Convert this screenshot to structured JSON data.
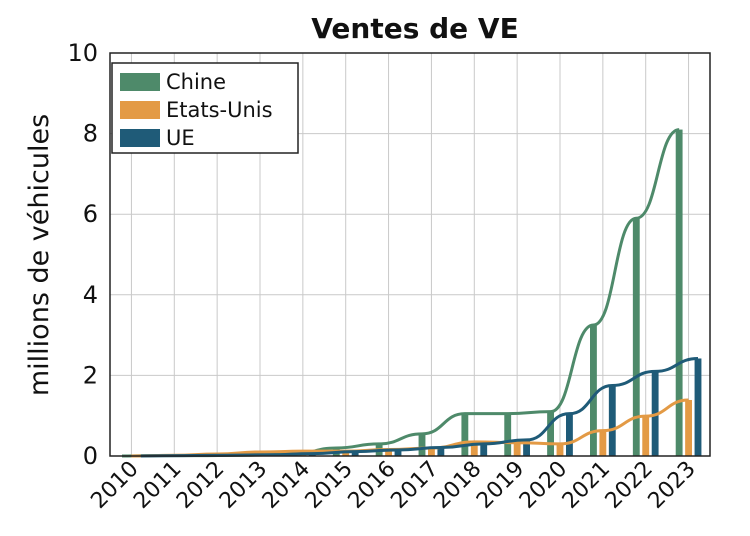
{
  "chart_data": {
    "type": "bar",
    "title": "Ventes de VE",
    "xlabel": "",
    "ylabel": "millions de véhicules",
    "categories": [
      "2010",
      "2011",
      "2012",
      "2013",
      "2014",
      "2015",
      "2016",
      "2017",
      "2018",
      "2019",
      "2020",
      "2021",
      "2022",
      "2023"
    ],
    "ylim": [
      0,
      10
    ],
    "yticks": [
      0,
      2,
      4,
      6,
      8,
      10
    ],
    "grid": true,
    "legend_position": "top-left",
    "series": [
      {
        "name": "Chine",
        "color": "#4e8a6a",
        "values": [
          0.0,
          0.01,
          0.01,
          0.02,
          0.05,
          0.2,
          0.3,
          0.55,
          1.05,
          1.05,
          1.1,
          3.25,
          5.9,
          8.1
        ]
      },
      {
        "name": "Etats-Unis",
        "color": "#e39a45",
        "values": [
          0.0,
          0.02,
          0.05,
          0.1,
          0.12,
          0.12,
          0.16,
          0.2,
          0.35,
          0.33,
          0.3,
          0.63,
          0.99,
          1.39
        ]
      },
      {
        "name": "UE",
        "color": "#1f5b78",
        "values": [
          0.0,
          0.01,
          0.02,
          0.03,
          0.06,
          0.11,
          0.15,
          0.21,
          0.3,
          0.4,
          1.05,
          1.75,
          2.1,
          2.42
        ]
      }
    ]
  }
}
